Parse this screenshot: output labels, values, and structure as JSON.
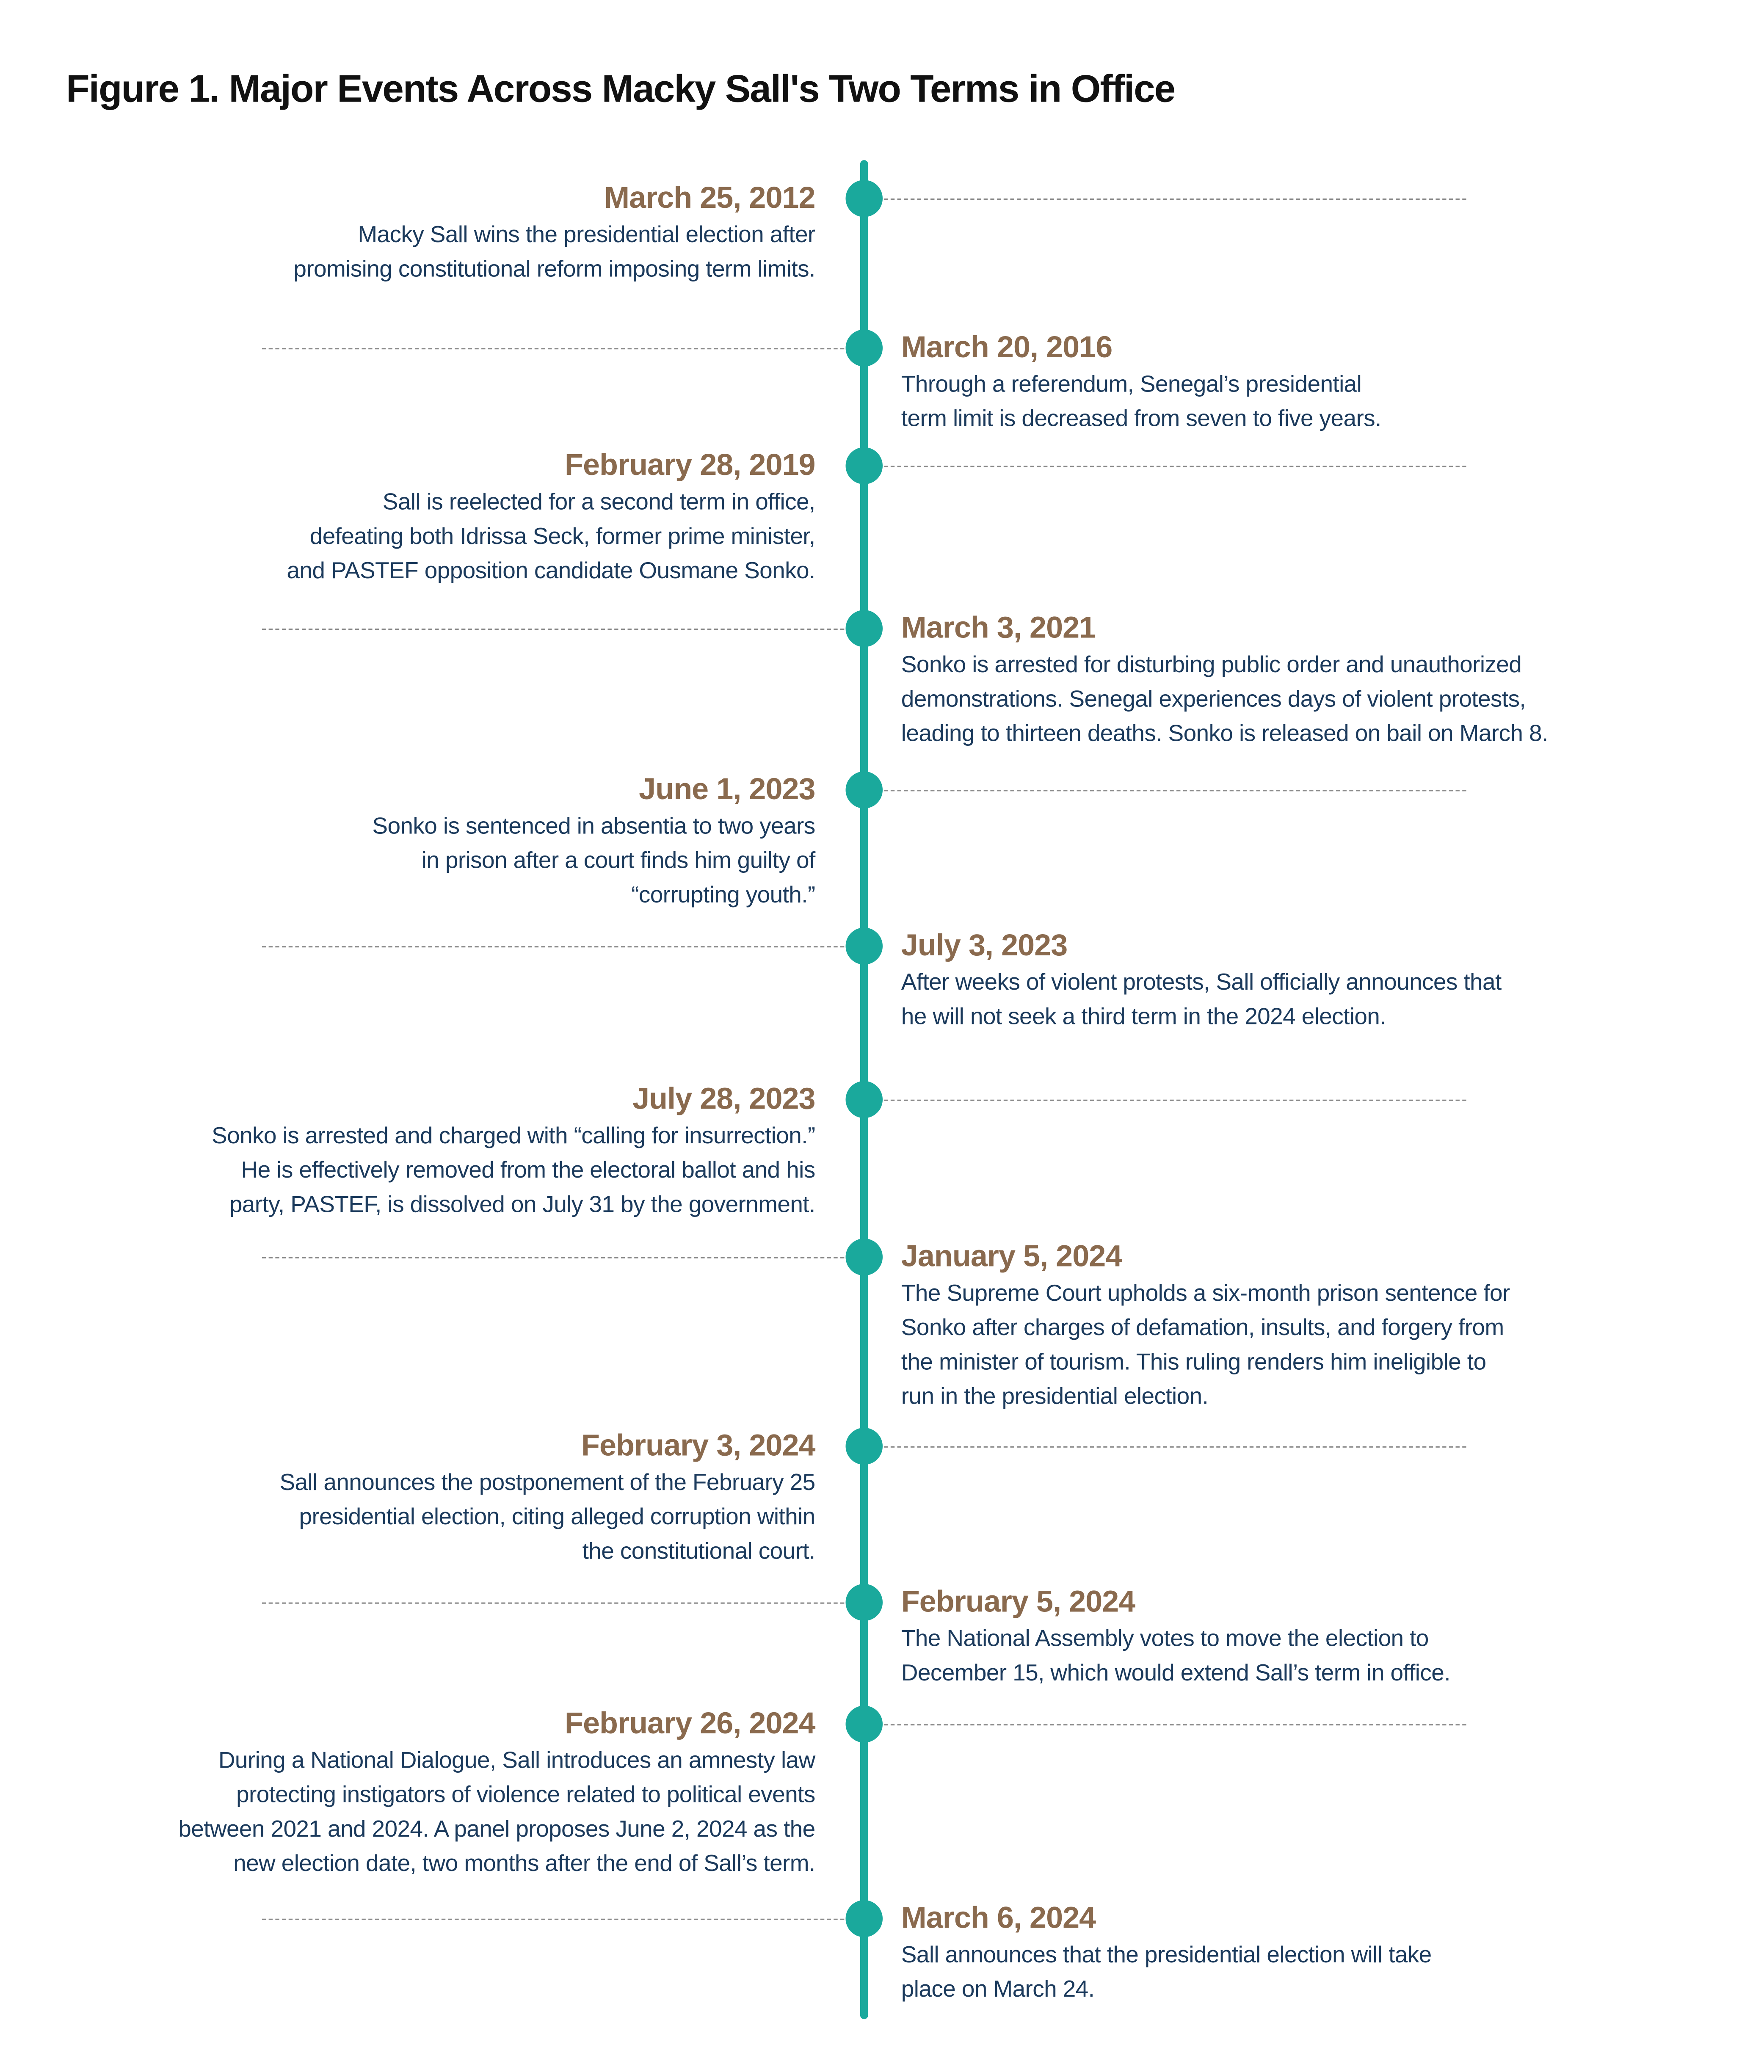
{
  "title": "Figure 1. Major Events Across Macky Sall's Two Terms in Office",
  "colors": {
    "timeline": "#1aa99c",
    "date": "#8a6a4e",
    "text": "#1b3a5c",
    "connector": "#8a8a8a"
  },
  "events": [
    {
      "date": "March 25, 2012",
      "side": "left",
      "lines": [
        "Macky Sall wins the presidential election after",
        "promising constitutional reform imposing term limits."
      ]
    },
    {
      "date": "March 20, 2016",
      "side": "right",
      "lines": [
        "Through a referendum, Senegal’s presidential",
        "term limit is decreased from seven to five years."
      ]
    },
    {
      "date": "February 28, 2019",
      "side": "left",
      "lines": [
        "Sall is reelected for a second term in office,",
        "defeating both Idrissa Seck, former prime minister,",
        "and PASTEF opposition candidate Ousmane Sonko."
      ]
    },
    {
      "date": "March 3, 2021",
      "side": "right",
      "lines": [
        "Sonko is arrested for disturbing public order and unauthorized",
        "demonstrations. Senegal experiences days of violent protests,",
        "leading to thirteen deaths. Sonko is released on bail on March 8."
      ]
    },
    {
      "date": "June 1, 2023",
      "side": "left",
      "lines": [
        "Sonko is sentenced in absentia to two years",
        "in prison after a court finds him guilty of",
        "“corrupting youth.”"
      ]
    },
    {
      "date": "July 3, 2023",
      "side": "right",
      "lines": [
        "After weeks of violent protests, Sall officially announces that",
        "he will not seek a third term in the 2024 election."
      ]
    },
    {
      "date": "July 28, 2023",
      "side": "left",
      "lines": [
        "Sonko is arrested and charged with “calling for insurrection.”",
        "He is effectively removed from the electoral ballot and his",
        "party, PASTEF, is dissolved on July 31 by the government."
      ]
    },
    {
      "date": "January 5, 2024",
      "side": "right",
      "lines": [
        "The Supreme Court upholds a six-month prison sentence for",
        "Sonko after charges of defamation, insults, and forgery from",
        "the minister of tourism. This ruling renders him ineligible to",
        "run in the presidential election."
      ]
    },
    {
      "date": "February 3, 2024",
      "side": "left",
      "lines": [
        "Sall announces the postponement of the February 25",
        "presidential election, citing alleged corruption within",
        "the constitutional court."
      ]
    },
    {
      "date": "February 5, 2024",
      "side": "right",
      "lines": [
        "The National Assembly votes to move the election to",
        "December 15, which would extend Sall’s term in office."
      ]
    },
    {
      "date": "February 26, 2024",
      "side": "left",
      "lines": [
        "During a National Dialogue, Sall introduces an amnesty law",
        "protecting instigators of violence related to political events",
        "between 2021 and 2024. A panel proposes June 2, 2024 as the",
        "new election date, two months after the end of Sall’s term."
      ]
    },
    {
      "date": "March 6, 2024",
      "side": "right",
      "lines": [
        "Sall announces that the presidential election will take",
        "place on March 24."
      ]
    }
  ]
}
